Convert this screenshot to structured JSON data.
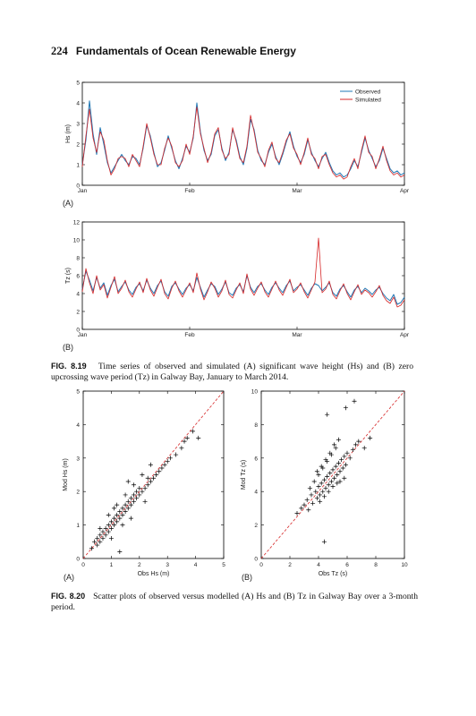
{
  "page": {
    "number": "224",
    "book_title": "Fundamentals of Ocean Renewable Energy"
  },
  "figure_819": {
    "label": "FIG. 8.19",
    "caption": "Time series of observed and simulated (A) significant wave height (Hs) and (B) zero upcrossing wave period (Tz) in Galway Bay, January to March 2014."
  },
  "figure_820": {
    "label": "FIG. 8.20",
    "caption": "Scatter plots of observed versus modelled (A) Hs and (B) Tz in Galway Bay over a 3-month period."
  },
  "chart_data": [
    {
      "id": "timeseries_hs",
      "type": "line",
      "panel_label": "(A)",
      "ylabel": "Hs (m)",
      "xlabel": "",
      "x_ticks": [
        "Jan",
        "Feb",
        "Mar",
        "Apr"
      ],
      "x_range": [
        "2014-01-01",
        "2014-04-01"
      ],
      "ylim": [
        0,
        5
      ],
      "y_ticks": [
        0,
        1,
        2,
        3,
        4,
        5
      ],
      "legend": "top-right",
      "grid": false,
      "series": [
        {
          "name": "Observed",
          "color": "#1f77b4",
          "x": [
            0,
            1,
            2,
            3,
            4,
            5,
            6,
            7,
            8,
            9,
            10,
            11,
            12,
            13,
            14,
            15,
            16,
            17,
            18,
            19,
            20,
            21,
            22,
            23,
            24,
            25,
            26,
            27,
            28,
            29,
            30,
            31,
            32,
            33,
            34,
            35,
            36,
            37,
            38,
            39,
            40,
            41,
            42,
            43,
            44,
            45,
            46,
            47,
            48,
            49,
            50,
            51,
            52,
            53,
            54,
            55,
            56,
            57,
            58,
            59,
            60,
            61,
            62,
            63,
            64,
            65,
            66,
            67,
            68,
            69,
            70,
            71,
            72,
            73,
            74,
            75,
            76,
            77,
            78,
            79,
            80,
            81,
            82,
            83,
            84,
            85,
            86,
            87,
            88,
            89,
            90
          ],
          "values": [
            1.0,
            2.2,
            4.1,
            2.5,
            1.5,
            2.8,
            2.0,
            1.1,
            0.6,
            0.9,
            1.2,
            1.5,
            1.2,
            1.0,
            1.4,
            1.3,
            1.0,
            1.8,
            2.9,
            2.4,
            1.6,
            0.9,
            1.1,
            1.7,
            2.4,
            1.8,
            1.2,
            0.8,
            1.3,
            1.9,
            1.6,
            2.3,
            4.0,
            2.6,
            1.7,
            1.2,
            1.5,
            2.4,
            2.7,
            1.8,
            1.2,
            1.6,
            2.7,
            2.2,
            1.4,
            1.0,
            1.8,
            3.2,
            2.7,
            1.7,
            1.2,
            1.0,
            1.6,
            2.0,
            1.4,
            1.0,
            1.5,
            2.1,
            2.6,
            1.9,
            1.4,
            1.1,
            1.5,
            2.2,
            1.6,
            1.2,
            0.9,
            1.3,
            1.6,
            1.1,
            0.7,
            0.5,
            0.6,
            0.4,
            0.5,
            0.8,
            1.2,
            0.9,
            1.6,
            2.3,
            1.7,
            1.3,
            0.9,
            1.2,
            1.8,
            1.3,
            0.8,
            0.6,
            0.7,
            0.5,
            0.6
          ]
        },
        {
          "name": "Simulated",
          "color": "#d62728",
          "x": [
            0,
            1,
            2,
            3,
            4,
            5,
            6,
            7,
            8,
            9,
            10,
            11,
            12,
            13,
            14,
            15,
            16,
            17,
            18,
            19,
            20,
            21,
            22,
            23,
            24,
            25,
            26,
            27,
            28,
            29,
            30,
            31,
            32,
            33,
            34,
            35,
            36,
            37,
            38,
            39,
            40,
            41,
            42,
            43,
            44,
            45,
            46,
            47,
            48,
            49,
            50,
            51,
            52,
            53,
            54,
            55,
            56,
            57,
            58,
            59,
            60,
            61,
            62,
            63,
            64,
            65,
            66,
            67,
            68,
            69,
            70,
            71,
            72,
            73,
            74,
            75,
            76,
            77,
            78,
            79,
            80,
            81,
            82,
            83,
            84,
            85,
            86,
            87,
            88,
            89,
            90
          ],
          "values": [
            0.9,
            2.4,
            3.7,
            2.3,
            1.6,
            2.6,
            2.2,
            1.2,
            0.5,
            0.8,
            1.3,
            1.4,
            1.3,
            0.9,
            1.5,
            1.2,
            0.9,
            1.9,
            3.0,
            2.3,
            1.5,
            1.0,
            1.0,
            1.8,
            2.3,
            1.9,
            1.1,
            0.9,
            1.2,
            2.0,
            1.5,
            2.4,
            3.8,
            2.5,
            1.8,
            1.1,
            1.6,
            2.5,
            2.8,
            1.7,
            1.3,
            1.5,
            2.8,
            2.1,
            1.3,
            1.1,
            1.9,
            3.4,
            2.6,
            1.6,
            1.3,
            0.9,
            1.7,
            2.1,
            1.3,
            1.1,
            1.6,
            2.2,
            2.5,
            1.8,
            1.5,
            1.0,
            1.6,
            2.3,
            1.5,
            1.3,
            0.8,
            1.4,
            1.5,
            1.0,
            0.6,
            0.4,
            0.5,
            0.3,
            0.4,
            0.9,
            1.3,
            0.8,
            1.7,
            2.4,
            1.6,
            1.4,
            0.8,
            1.3,
            1.9,
            1.2,
            0.7,
            0.5,
            0.6,
            0.4,
            0.5
          ]
        }
      ]
    },
    {
      "id": "timeseries_tz",
      "type": "line",
      "panel_label": "(B)",
      "ylabel": "Tz (s)",
      "xlabel": "",
      "x_ticks": [
        "Jan",
        "Feb",
        "Mar",
        "Apr"
      ],
      "x_range": [
        "2014-01-01",
        "2014-04-01"
      ],
      "ylim": [
        0,
        12
      ],
      "y_ticks": [
        0,
        2,
        4,
        6,
        8,
        10,
        12
      ],
      "grid": false,
      "series": [
        {
          "name": "Observed",
          "color": "#1f77b4",
          "x": [
            0,
            1,
            2,
            3,
            4,
            5,
            6,
            7,
            8,
            9,
            10,
            11,
            12,
            13,
            14,
            15,
            16,
            17,
            18,
            19,
            20,
            21,
            22,
            23,
            24,
            25,
            26,
            27,
            28,
            29,
            30,
            31,
            32,
            33,
            34,
            35,
            36,
            37,
            38,
            39,
            40,
            41,
            42,
            43,
            44,
            45,
            46,
            47,
            48,
            49,
            50,
            51,
            52,
            53,
            54,
            55,
            56,
            57,
            58,
            59,
            60,
            61,
            62,
            63,
            64,
            65,
            66,
            67,
            68,
            69,
            70,
            71,
            72,
            73,
            74,
            75,
            76,
            77,
            78,
            79,
            80,
            81,
            82,
            83,
            84,
            85,
            86,
            87,
            88,
            89,
            90
          ],
          "values": [
            4.5,
            6.5,
            5.5,
            4.3,
            5.8,
            4.6,
            5.2,
            3.8,
            4.9,
            5.6,
            4.2,
            4.8,
            5.3,
            4.4,
            3.9,
            4.7,
            5.1,
            4.3,
            5.5,
            4.6,
            4.0,
            4.9,
            5.4,
            4.2,
            3.7,
            4.8,
            5.2,
            4.5,
            3.9,
            4.6,
            5.0,
            4.3,
            5.8,
            4.7,
            3.6,
            4.4,
            5.1,
            4.8,
            3.9,
            4.5,
            5.3,
            4.1,
            3.8,
            4.6,
            5.0,
            4.2,
            6.0,
            4.7,
            4.1,
            4.8,
            5.1,
            4.4,
            3.9,
            4.7,
            5.2,
            4.6,
            4.1,
            4.9,
            5.4,
            4.3,
            4.7,
            5.0,
            4.4,
            3.8,
            4.6,
            5.1,
            4.9,
            4.3,
            4.7,
            5.2,
            4.1,
            3.7,
            4.5,
            4.9,
            4.2,
            3.6,
            4.4,
            4.8,
            4.1,
            4.6,
            4.3,
            3.9,
            4.4,
            4.7,
            4.0,
            3.5,
            3.2,
            3.9,
            2.8,
            3.0,
            3.6
          ]
        },
        {
          "name": "Simulated",
          "color": "#d62728",
          "x": [
            0,
            1,
            2,
            3,
            4,
            5,
            6,
            7,
            8,
            9,
            10,
            11,
            12,
            13,
            14,
            15,
            16,
            17,
            18,
            19,
            20,
            21,
            22,
            23,
            24,
            25,
            26,
            27,
            28,
            29,
            30,
            31,
            32,
            33,
            34,
            35,
            36,
            37,
            38,
            39,
            40,
            41,
            42,
            43,
            44,
            45,
            46,
            47,
            48,
            49,
            50,
            51,
            52,
            53,
            54,
            55,
            56,
            57,
            58,
            59,
            60,
            61,
            62,
            63,
            64,
            65,
            66,
            67,
            68,
            69,
            70,
            71,
            72,
            73,
            74,
            75,
            76,
            77,
            78,
            79,
            80,
            81,
            82,
            83,
            84,
            85,
            86,
            87,
            88,
            89,
            90
          ],
          "values": [
            4.2,
            6.8,
            5.2,
            4.0,
            6.0,
            4.4,
            5.0,
            3.5,
            4.7,
            5.9,
            4.0,
            4.6,
            5.5,
            4.2,
            3.6,
            4.5,
            5.3,
            4.1,
            5.7,
            4.4,
            3.7,
            4.7,
            5.6,
            4.0,
            3.4,
            4.6,
            5.4,
            4.3,
            3.6,
            4.4,
            5.2,
            4.1,
            6.3,
            4.5,
            3.3,
            4.2,
            5.3,
            4.6,
            3.6,
            4.3,
            5.5,
            3.9,
            3.5,
            4.4,
            5.2,
            4.0,
            6.2,
            4.5,
            3.8,
            4.6,
            5.3,
            4.2,
            3.6,
            4.5,
            5.4,
            4.4,
            3.8,
            4.7,
            5.6,
            4.1,
            4.5,
            5.2,
            4.2,
            3.5,
            4.4,
            5.3,
            10.2,
            4.1,
            4.5,
            5.4,
            3.9,
            3.4,
            4.3,
            5.1,
            4.0,
            3.3,
            4.2,
            5.0,
            3.9,
            4.4,
            4.1,
            3.6,
            4.2,
            4.9,
            3.8,
            3.2,
            2.9,
            3.6,
            2.5,
            2.7,
            3.3
          ]
        }
      ]
    },
    {
      "id": "scatter_hs",
      "type": "scatter",
      "panel_label": "(A)",
      "xlabel": "Obs Hs (m)",
      "ylabel": "Mod Hs (m)",
      "xlim": [
        0,
        5
      ],
      "ylim": [
        0,
        5
      ],
      "x_ticks": [
        0,
        1,
        2,
        3,
        4,
        5
      ],
      "y_ticks": [
        0,
        1,
        2,
        3,
        4,
        5
      ],
      "marker": "+",
      "reference_line": "1:1 dashed red",
      "x": [
        0.3,
        0.4,
        0.5,
        0.5,
        0.6,
        0.6,
        0.7,
        0.7,
        0.8,
        0.8,
        0.9,
        0.9,
        1.0,
        1.0,
        1.1,
        1.1,
        1.2,
        1.2,
        1.3,
        1.3,
        1.4,
        1.4,
        1.5,
        1.5,
        1.6,
        1.6,
        1.7,
        1.7,
        1.8,
        1.8,
        1.9,
        1.9,
        2.0,
        2.0,
        2.1,
        2.2,
        2.3,
        2.3,
        2.4,
        2.5,
        2.6,
        2.7,
        2.8,
        2.9,
        3.0,
        3.1,
        3.3,
        3.5,
        3.6,
        3.7,
        3.9,
        4.1,
        0.6,
        0.9,
        1.2,
        1.5,
        1.8,
        2.1,
        2.4,
        1.4,
        1.7,
        1.0,
        1.6,
        2.2,
        1.1,
        1.3
      ],
      "y": [
        0.3,
        0.5,
        0.4,
        0.6,
        0.5,
        0.7,
        0.6,
        0.8,
        0.7,
        0.9,
        0.8,
        1.0,
        0.9,
        1.1,
        1.0,
        1.2,
        1.1,
        1.3,
        1.2,
        1.4,
        1.3,
        1.5,
        1.4,
        1.6,
        1.5,
        1.7,
        1.6,
        1.8,
        1.7,
        1.9,
        1.8,
        2.0,
        1.9,
        2.1,
        2.0,
        2.1,
        2.2,
        2.4,
        2.3,
        2.4,
        2.5,
        2.6,
        2.7,
        2.8,
        2.9,
        3.0,
        3.1,
        3.3,
        3.5,
        3.6,
        3.8,
        3.6,
        0.9,
        1.3,
        1.6,
        1.9,
        2.2,
        2.5,
        2.8,
        1.0,
        1.2,
        0.6,
        2.3,
        1.7,
        1.5,
        0.2
      ]
    },
    {
      "id": "scatter_tz",
      "type": "scatter",
      "panel_label": "(B)",
      "xlabel": "Obs Tz (s)",
      "ylabel": "Mod Tz (s)",
      "xlim": [
        0,
        10
      ],
      "ylim": [
        0,
        10
      ],
      "x_ticks": [
        0,
        2,
        4,
        6,
        8,
        10
      ],
      "y_ticks": [
        0,
        2,
        4,
        6,
        8,
        10
      ],
      "marker": "+",
      "reference_line": "1:1 dashed red",
      "x": [
        2.5,
        2.8,
        3.0,
        3.2,
        3.3,
        3.5,
        3.6,
        3.8,
        3.9,
        4.0,
        4.1,
        4.2,
        4.3,
        4.4,
        4.5,
        4.6,
        4.7,
        4.8,
        4.9,
        5.0,
        5.1,
        5.2,
        5.3,
        5.4,
        5.5,
        5.6,
        5.7,
        5.8,
        5.9,
        6.0,
        6.2,
        6.4,
        6.6,
        6.8,
        7.2,
        7.6,
        3.4,
        3.7,
        4.0,
        4.3,
        4.6,
        4.9,
        5.2,
        5.5,
        5.8,
        4.1,
        4.4,
        4.7,
        5.0,
        5.3,
        3.9,
        4.2,
        4.5,
        4.8,
        5.1,
        5.4,
        4.6,
        5.9,
        6.5,
        4.4
      ],
      "y": [
        2.7,
        3.0,
        3.2,
        3.5,
        2.9,
        3.8,
        3.3,
        4.0,
        3.6,
        4.3,
        3.8,
        4.5,
        4.0,
        4.7,
        4.2,
        4.9,
        4.4,
        5.1,
        4.6,
        5.3,
        4.8,
        5.5,
        5.0,
        5.7,
        5.2,
        5.9,
        5.4,
        6.1,
        5.6,
        6.3,
        6.0,
        6.5,
        6.8,
        7.0,
        6.6,
        7.2,
        4.2,
        4.6,
        5.0,
        5.4,
        5.8,
        6.2,
        6.6,
        4.6,
        4.8,
        3.4,
        3.7,
        4.0,
        4.3,
        4.5,
        5.2,
        5.5,
        5.9,
        6.3,
        6.8,
        7.1,
        8.6,
        9.0,
        9.4,
        1.0
      ]
    }
  ]
}
